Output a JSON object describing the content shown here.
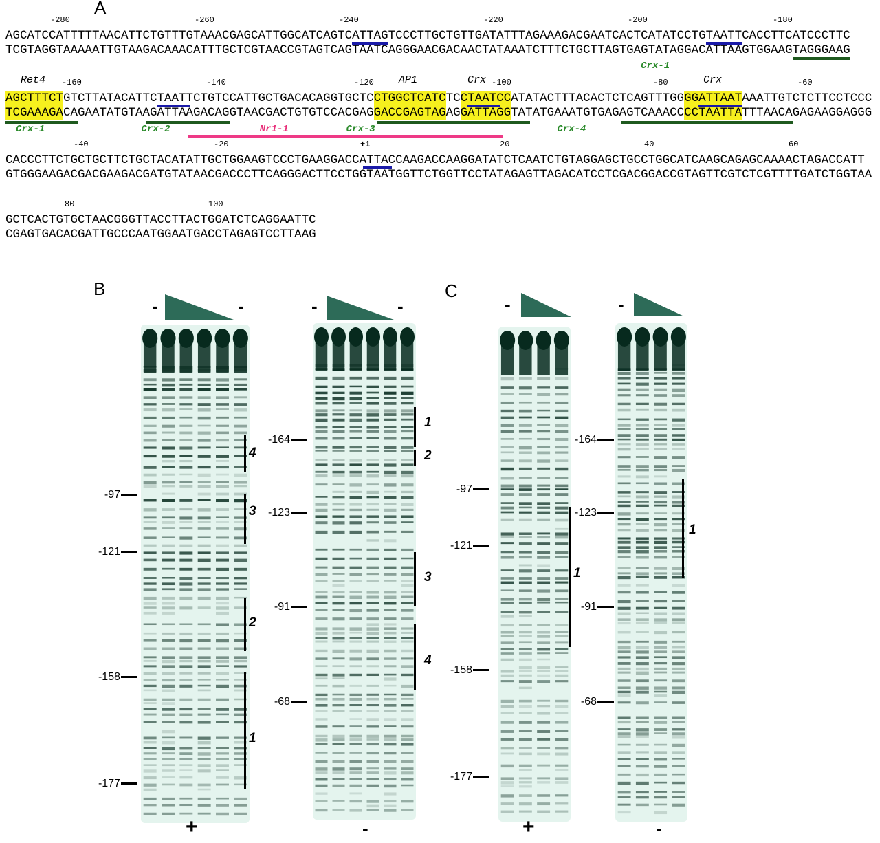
{
  "panel_a": {
    "letter": "A",
    "rows": [
      {
        "positions": [
          "-280",
          "-260",
          "-240",
          "-220",
          "-200",
          "-180"
        ],
        "top": "AGCATCCATTTTTAACATTCTGTTTGTAAACGAGCATTGGCATCAGTCATTAGTCCCTTGCTGTTGATATTTAGAAAGACGAATCACTCATATCCTGTAATTCACCTTCATCCCTTC",
        "bottom": "TCGTAGGTAAAAATTGTAAGACAAACATTTGCTCGTAACCGTAGTCAGTAATCAGGGAACGACAACTATAAATCTTTCTGCTTAGTGAGTATAGGACATTAAGTGGAAGTAGGGAAG"
      },
      {
        "positions": [
          "-160",
          "-140",
          "-120",
          "-100",
          "-80",
          "-60"
        ],
        "top": "AGCTTTCTGTCTTATACATTCTAATTCTGTCCATTGCTGACACAGGTGCTCCTGGCTCATCTCCTAATCCATATACTTTACACTCTCAGTTTGGGGATTAATAAATTGTCTCTTCCTCCC",
        "bottom": "TCGAAAGACAGAATATGTAAGATTAAGACAGGTAACGACTGTGTCCACGAGGACCGAGTAGAGGATTAGGTATATGAAATGTGAGAGTCAAACCCCTAATTATTTAACAGAGAAGGAGGG"
      },
      {
        "positions": [
          "-40",
          "-20",
          "+1",
          "20",
          "40",
          "60"
        ],
        "top": "CACCCTTCTGCTGCTTCTGCTACATATTGCTGGAAGTCCCTGAAGGACCATTACCAAGACCAAGGATATCTCAATCTGTAGGAGCTGCCTGGCATCAAGCAGAGCAAAACTAGACCATT",
        "bottom": "GTGGGAAGACGACGAAGACGATGTATAACGACCCTTCAGGGACTTCCTGGTAATGGTTCTGGTTCCTATAGAGTTAGACATCCTCGACGGACCGTAGTTCGTCTCGTTTTGATCTGGTAA"
      },
      {
        "positions": [
          "80",
          "100"
        ],
        "top": "GCTCACTGTGCTAACGGGTTACCTTACTGGATCTCAGGAATTC",
        "bottom": "CGAGTGACACGATTGCCCAATGGAATGACCTAGAGTCCTTAAG"
      }
    ],
    "sites": [
      "Ret4",
      "AP1",
      "Crx",
      "Crx"
    ],
    "elements": [
      "Crx-1",
      "Crx-1",
      "Crx-2",
      "Nr1-1",
      "Crx-3",
      "Crx-4"
    ],
    "colors": {
      "highlight": "#f6f01e",
      "tata_underline": "#1a1aa8",
      "crx_element": "#1f5a1f",
      "nrl_element": "#e8307a"
    }
  },
  "panel_b": {
    "letter": "B",
    "gels": [
      {
        "lane_signs": [
          "-",
          "-"
        ],
        "markers": [
          "-97",
          "-121",
          "-158",
          "-177"
        ],
        "regions": [
          "4",
          "3",
          "2",
          "1"
        ],
        "strand": "+"
      },
      {
        "lane_signs": [
          "-",
          "-"
        ],
        "markers": [
          "-164",
          "-123",
          "-91",
          "-68"
        ],
        "regions": [
          "1",
          "2",
          "3",
          "4"
        ],
        "strand": "-"
      }
    ]
  },
  "panel_c": {
    "letter": "C",
    "gels": [
      {
        "lane_signs": [
          "-"
        ],
        "markers": [
          "-97",
          "-121",
          "-158",
          "-177"
        ],
        "regions": [
          "1"
        ],
        "strand": "+"
      },
      {
        "lane_signs": [
          "-"
        ],
        "markers": [
          "-164",
          "-123",
          "-91",
          "-68"
        ],
        "regions": [
          "1"
        ],
        "strand": "-"
      }
    ]
  },
  "colors": {
    "triangle": "#2d6b58",
    "gel_band": "#072a1e",
    "gel_background": "#e4f4ee"
  }
}
